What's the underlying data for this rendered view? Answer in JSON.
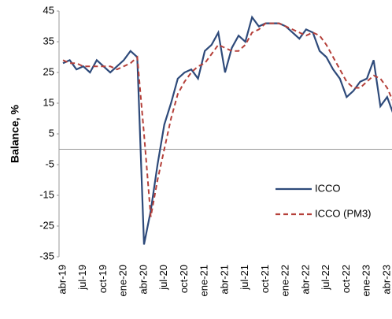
{
  "chart_data": {
    "type": "line",
    "y_label": "Balance, %",
    "categories": [
      "abr-19",
      null,
      null,
      "jul-19",
      null,
      null,
      "oct-19",
      null,
      null,
      "ene-20",
      null,
      null,
      "abr-20",
      null,
      null,
      "jul-20",
      null,
      null,
      "oct-20",
      null,
      null,
      "ene-21",
      null,
      null,
      "abr-21",
      null,
      null,
      "jul-21",
      null,
      null,
      "oct-21",
      null,
      null,
      "ene-22",
      null,
      null,
      "abr-22",
      null,
      null,
      "jul-22",
      null,
      null,
      "oct-22",
      null,
      null,
      "ene-23",
      null,
      null,
      "abr-23",
      null
    ],
    "series": [
      {
        "name": "ICCO",
        "color": "#2e4a7a",
        "dash": false,
        "values": [
          28,
          29,
          26,
          27,
          25,
          29,
          27,
          25,
          27,
          29,
          32,
          30,
          -31,
          -20,
          -5,
          8,
          15,
          23,
          25,
          26,
          23,
          32,
          34,
          38,
          25,
          33,
          37,
          35,
          43,
          40,
          41,
          41,
          41,
          40,
          38,
          36,
          39,
          38,
          32,
          30,
          26,
          23,
          17,
          19,
          22,
          23,
          29,
          14,
          17,
          11
        ]
      },
      {
        "name": "ICCO (PM3)",
        "color": "#b5403a",
        "dash": true,
        "values": [
          29,
          28,
          28,
          27,
          27,
          27,
          27,
          27,
          26,
          27,
          28,
          30,
          5,
          -22,
          -10,
          0,
          10,
          18,
          22,
          25,
          27,
          28,
          31,
          34,
          33,
          32,
          32,
          34,
          38,
          39,
          41,
          41,
          41,
          40,
          39,
          38,
          37,
          38,
          37,
          34,
          30,
          26,
          22,
          20,
          20,
          22,
          24,
          23,
          20,
          15
        ]
      }
    ],
    "ylim": [
      -35,
      45
    ],
    "yticks": [
      -35,
      -25,
      -15,
      -5,
      5,
      15,
      25,
      35,
      45
    ],
    "grid": false,
    "legend": "lower right"
  }
}
